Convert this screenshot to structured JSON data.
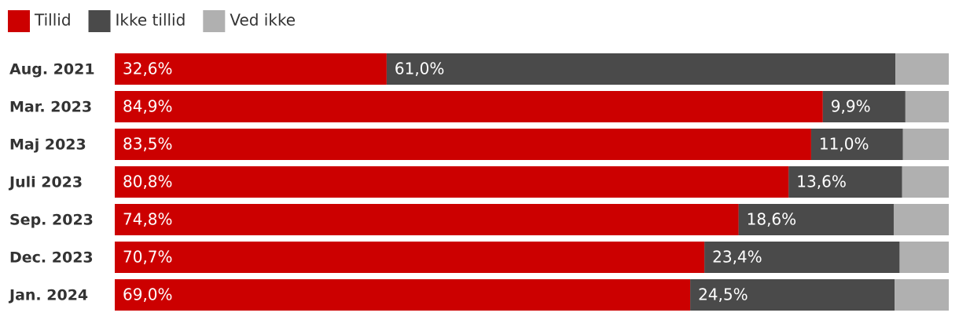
{
  "chart_data": {
    "type": "stacked-bar-horizontal",
    "categories": [
      "Aug. 2021",
      "Mar. 2023",
      "Maj 2023",
      "Juli 2023",
      "Sep. 2023",
      "Dec. 2023",
      "Jan. 2024"
    ],
    "series": [
      {
        "name": "Tillid",
        "color": "#cc0000",
        "values": [
          32.6,
          84.9,
          83.5,
          80.8,
          74.8,
          70.7,
          69.0
        ],
        "value_labels": [
          "32,6%",
          "84,9%",
          "83,5%",
          "80,8%",
          "74,8%",
          "70,7%",
          "69,0%"
        ]
      },
      {
        "name": "Ikke tillid",
        "color": "#4a4a4a",
        "values": [
          61.0,
          9.9,
          11.0,
          13.6,
          18.6,
          23.4,
          24.5
        ],
        "value_labels": [
          "61,0%",
          "9,9%",
          "11,0%",
          "13,6%",
          "18,6%",
          "23,4%",
          "24,5%"
        ]
      },
      {
        "name": "Ved ikke",
        "color": "#b0b0b0",
        "values": [
          6.4,
          5.2,
          5.5,
          5.6,
          6.6,
          5.9,
          6.5
        ]
      }
    ]
  }
}
